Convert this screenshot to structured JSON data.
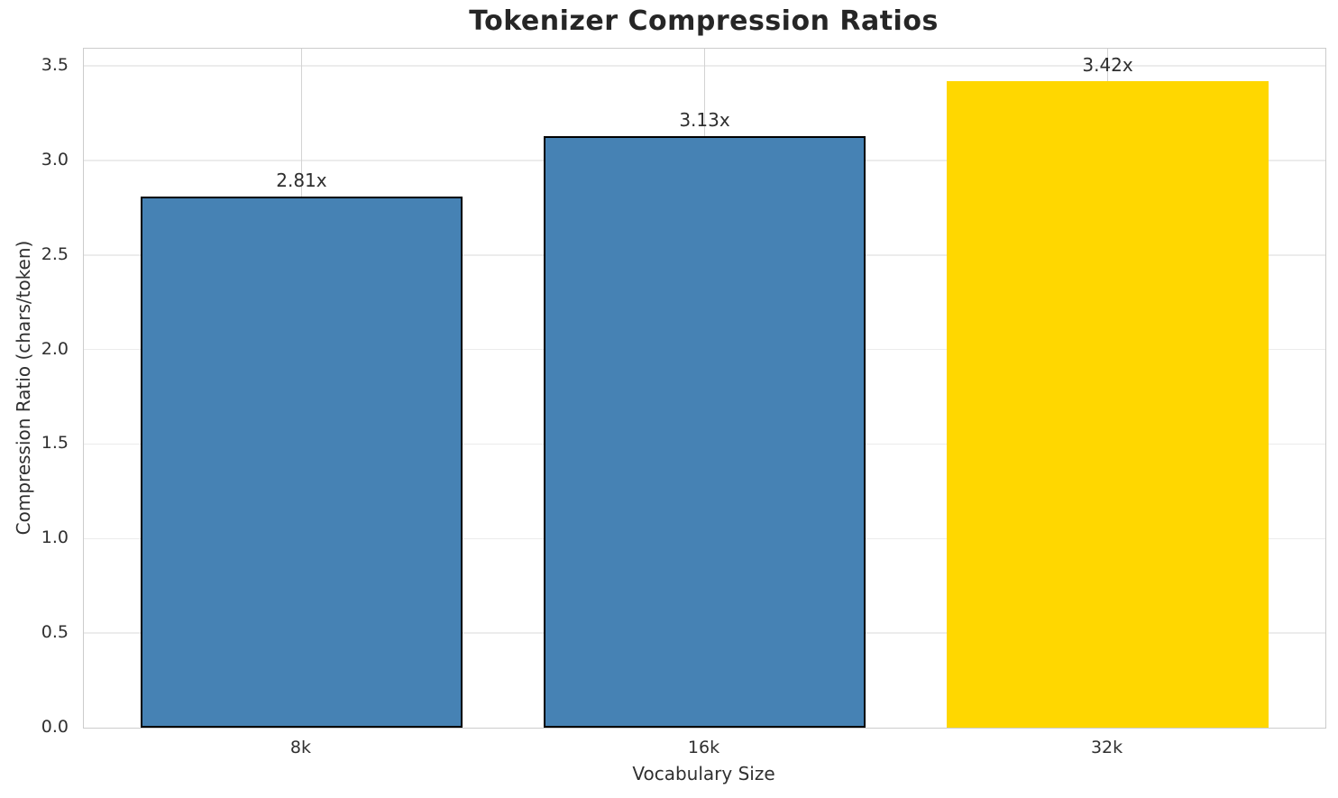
{
  "chart_data": {
    "type": "bar",
    "title": "Tokenizer Compression Ratios",
    "xlabel": "Vocabulary Size",
    "ylabel": "Compression Ratio (chars/token)",
    "categories": [
      "8k",
      "16k",
      "32k"
    ],
    "values": [
      2.81,
      3.13,
      3.42
    ],
    "bar_labels": [
      "2.81x",
      "3.13x",
      "3.42x"
    ],
    "bar_colors": [
      "#4682B4",
      "#4682B4",
      "#FFD700"
    ],
    "bar_edge_colors": [
      "#000000",
      "#000000",
      "transparent"
    ],
    "ylim": [
      0,
      3.591
    ],
    "yticks": [
      0.0,
      0.5,
      1.0,
      1.5,
      2.0,
      2.5,
      3.0,
      3.5
    ],
    "ytick_labels": [
      "0.0",
      "0.5",
      "1.0",
      "1.5",
      "2.0",
      "2.5",
      "3.0",
      "3.5"
    ],
    "grid": "both",
    "legend_position": "none"
  },
  "style_colors": {
    "bar_blue": "#4682B4",
    "bar_gold": "#FFD700",
    "bar_edge": "#000000",
    "spine": "#CCCCCC",
    "hgrid": "#ECECEC",
    "vgrid": "#D3D3D3",
    "tick_text": "#303030",
    "title_text": "#262626"
  }
}
